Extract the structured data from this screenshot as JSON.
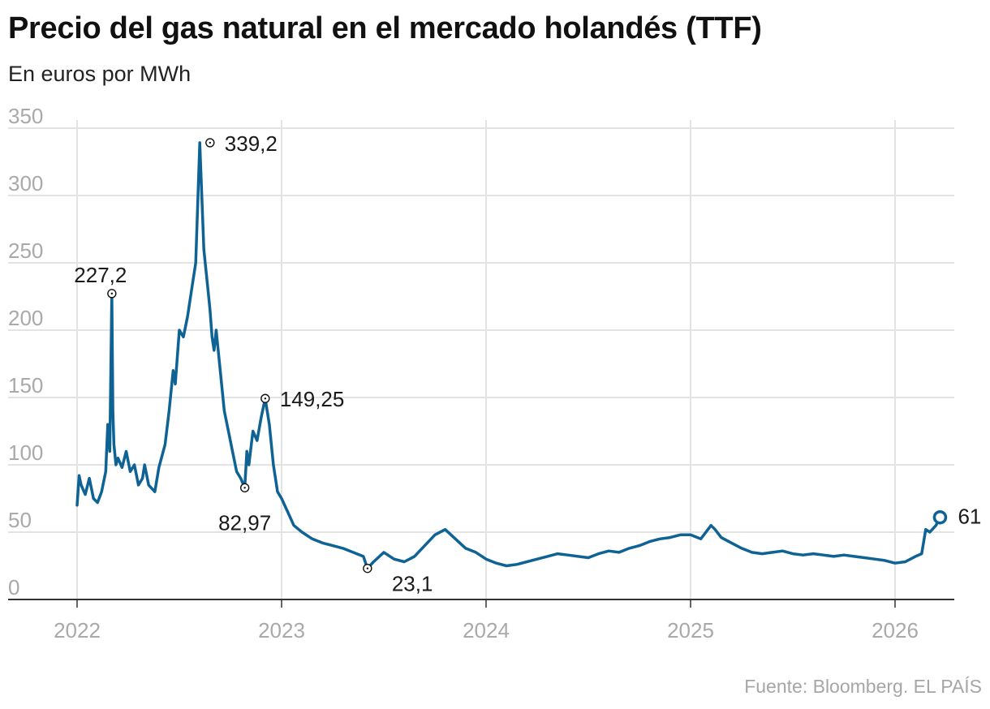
{
  "header": {
    "title": "Precio del gas natural en el mercado holandés (TTF)",
    "subtitle": "En euros por MWh"
  },
  "footer": {
    "source": "Fuente: Bloomberg. EL PAÍS"
  },
  "colors": {
    "line": "#0e6394",
    "grid": "#e3e3e3",
    "axis": "#333333",
    "tick_text": "#a9a9a9"
  },
  "chart_data": {
    "type": "line",
    "title": "Precio del gas natural en el mercado holandés (TTF)",
    "ylabel": "En euros por MWh",
    "xlabel": "",
    "ylim": [
      0,
      350
    ],
    "xlim": [
      2022.0,
      2026.3
    ],
    "y_ticks": [
      0,
      50,
      100,
      150,
      200,
      250,
      300,
      350
    ],
    "y_tick_labels": [
      "0",
      "50",
      "100",
      "150",
      "200",
      "250",
      "300",
      "350"
    ],
    "x_ticks": [
      2022,
      2023,
      2024,
      2025,
      2026
    ],
    "x_tick_labels": [
      "2022",
      "2023",
      "2024",
      "2025",
      "2026"
    ],
    "grid": true,
    "series": [
      {
        "name": "",
        "x": [
          2022.0,
          2022.01,
          2022.02,
          2022.04,
          2022.06,
          2022.08,
          2022.1,
          2022.12,
          2022.14,
          2022.15,
          2022.16,
          2022.17,
          2022.175,
          2022.18,
          2022.19,
          2022.2,
          2022.22,
          2022.24,
          2022.26,
          2022.28,
          2022.3,
          2022.32,
          2022.33,
          2022.35,
          2022.38,
          2022.4,
          2022.43,
          2022.45,
          2022.47,
          2022.48,
          2022.5,
          2022.52,
          2022.54,
          2022.56,
          2022.58,
          2022.6,
          2022.62,
          2022.64,
          2022.65,
          2022.66,
          2022.67,
          2022.68,
          2022.7,
          2022.72,
          2022.74,
          2022.76,
          2022.78,
          2022.8,
          2022.82,
          2022.83,
          2022.84,
          2022.86,
          2022.88,
          2022.9,
          2022.92,
          2022.94,
          2022.96,
          2022.98,
          2023.0,
          2023.03,
          2023.06,
          2023.1,
          2023.15,
          2023.2,
          2023.25,
          2023.3,
          2023.35,
          2023.4,
          2023.42,
          2023.45,
          2023.5,
          2023.55,
          2023.6,
          2023.65,
          2023.7,
          2023.75,
          2023.8,
          2023.85,
          2023.9,
          2023.95,
          2024.0,
          2024.05,
          2024.1,
          2024.15,
          2024.2,
          2024.25,
          2024.3,
          2024.35,
          2024.4,
          2024.45,
          2024.5,
          2024.55,
          2024.6,
          2024.65,
          2024.7,
          2024.75,
          2024.8,
          2024.85,
          2024.9,
          2024.95,
          2025.0,
          2025.05,
          2025.1,
          2025.12,
          2025.15,
          2025.2,
          2025.25,
          2025.3,
          2025.35,
          2025.4,
          2025.45,
          2025.5,
          2025.55,
          2025.6,
          2025.65,
          2025.7,
          2025.75,
          2025.8,
          2025.85,
          2025.9,
          2025.95,
          2026.0,
          2026.05,
          2026.1,
          2026.13,
          2026.15,
          2026.17,
          2026.2,
          2026.22
        ],
        "y": [
          70,
          92,
          85,
          78,
          90,
          75,
          72,
          80,
          95,
          130,
          110,
          227.2,
          140,
          115,
          100,
          105,
          98,
          110,
          95,
          100,
          85,
          90,
          100,
          85,
          80,
          98,
          115,
          140,
          170,
          160,
          200,
          195,
          210,
          230,
          250,
          339.2,
          260,
          230,
          215,
          195,
          185,
          200,
          170,
          140,
          125,
          110,
          95,
          90,
          82.97,
          110,
          100,
          125,
          118,
          135,
          149.25,
          130,
          100,
          80,
          75,
          65,
          55,
          50,
          45,
          42,
          40,
          38,
          35,
          32,
          23.1,
          28,
          35,
          30,
          28,
          32,
          40,
          48,
          52,
          45,
          38,
          35,
          30,
          27,
          25,
          26,
          28,
          30,
          32,
          34,
          33,
          32,
          31,
          34,
          36,
          35,
          38,
          40,
          43,
          45,
          46,
          48,
          48,
          45,
          55,
          52,
          46,
          42,
          38,
          35,
          34,
          35,
          36,
          34,
          33,
          34,
          33,
          32,
          33,
          32,
          31,
          30,
          29,
          27,
          28,
          32,
          34,
          52,
          50,
          55,
          61
        ]
      }
    ],
    "annotations": [
      {
        "label": "227,2",
        "x": 2022.17,
        "y": 227.2
      },
      {
        "label": "339,2",
        "x": 2022.65,
        "y": 339.2
      },
      {
        "label": "149,25",
        "x": 2022.92,
        "y": 149.25
      },
      {
        "label": "82,97",
        "x": 2022.82,
        "y": 82.97
      },
      {
        "label": "23,1",
        "x": 2023.42,
        "y": 23.1
      },
      {
        "label": "61",
        "x": 2026.22,
        "y": 61
      }
    ]
  }
}
